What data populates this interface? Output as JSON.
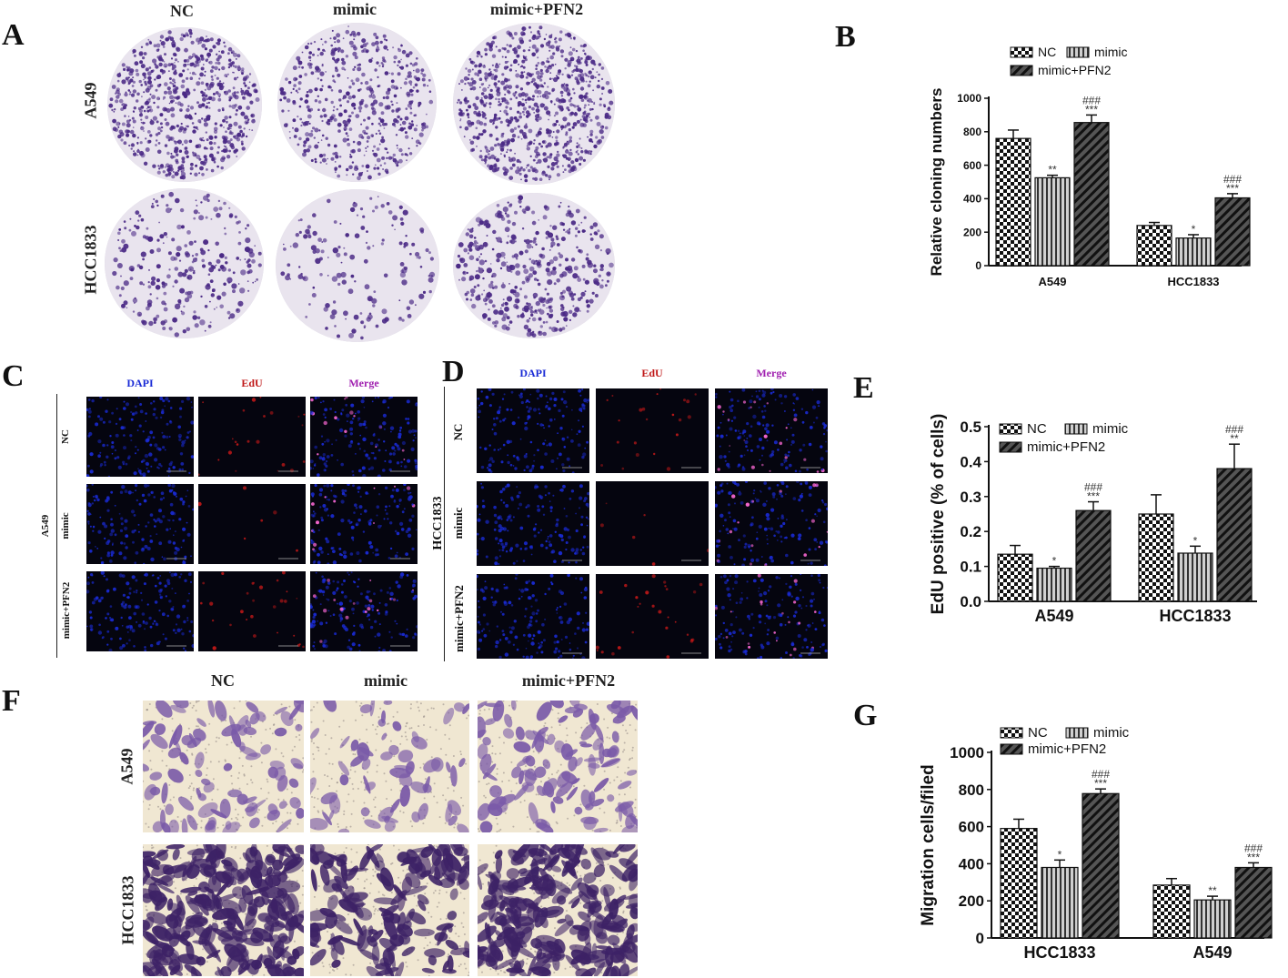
{
  "panels": {
    "A": {
      "label": "A",
      "columns": [
        "NC",
        "mimic",
        "mimic+PFN2"
      ],
      "rows": [
        "A549",
        "HCC1833"
      ]
    },
    "C": {
      "label": "C",
      "columns": [
        "DAPI",
        "EdU",
        "Merge"
      ],
      "rows": [
        "NC",
        "mimic",
        "mimic+PFN2"
      ],
      "cell_line": "A549"
    },
    "D": {
      "label": "D",
      "columns": [
        "DAPI",
        "EdU",
        "Merge"
      ],
      "rows": [
        "NC",
        "mimic",
        "mimic+PFN2"
      ],
      "cell_line": "HCC1833"
    },
    "F": {
      "label": "F",
      "columns": [
        "NC",
        "mimic",
        "mimic+PFN2"
      ],
      "rows": [
        "A549",
        "HCC1833"
      ]
    },
    "colors": {
      "dapi": "#1a2bd6",
      "edu": "#c01818",
      "stain": "#4b2a86",
      "dish_bg": "#e9e4ee",
      "trans_bg": "#f0e7d2"
    }
  },
  "chart_data": [
    {
      "panel": "B",
      "type": "bar",
      "categories": [
        "A549",
        "HCC1833"
      ],
      "ylabel": "Relative cloning numbers",
      "ylim": [
        0,
        1000
      ],
      "yticks": [
        0,
        200,
        400,
        600,
        800,
        1000
      ],
      "legend": [
        "NC",
        "mimic",
        "mimic+PFN2"
      ],
      "series": [
        {
          "name": "NC",
          "values": [
            760,
            240
          ],
          "errors": [
            50,
            18
          ],
          "annotations": [
            "",
            ""
          ]
        },
        {
          "name": "mimic",
          "values": [
            525,
            165
          ],
          "errors": [
            15,
            20
          ],
          "annotations": [
            "**",
            "*"
          ]
        },
        {
          "name": "mimic+PFN2",
          "values": [
            855,
            405
          ],
          "errors": [
            45,
            25
          ],
          "annotations": [
            "###\n***",
            "###\n***"
          ]
        }
      ]
    },
    {
      "panel": "E",
      "type": "bar",
      "categories": [
        "A549",
        "HCC1833"
      ],
      "ylabel": "EdU positive (% of cells)",
      "ylim": [
        0,
        0.5
      ],
      "yticks": [
        "0.0",
        "0.1",
        "0.2",
        "0.3",
        "0.4",
        "0.5"
      ],
      "legend": [
        "NC",
        "mimic",
        "mimic+PFN2"
      ],
      "series": [
        {
          "name": "NC",
          "values": [
            0.135,
            0.25
          ],
          "errors": [
            0.025,
            0.055
          ],
          "annotations": [
            "",
            ""
          ]
        },
        {
          "name": "mimic",
          "values": [
            0.095,
            0.138
          ],
          "errors": [
            0.005,
            0.02
          ],
          "annotations": [
            "*",
            "*"
          ]
        },
        {
          "name": "mimic+PFN2",
          "values": [
            0.26,
            0.38
          ],
          "errors": [
            0.025,
            0.07
          ],
          "annotations": [
            "###\n***",
            "###\n**"
          ]
        }
      ]
    },
    {
      "panel": "G",
      "type": "bar",
      "categories": [
        "HCC1833",
        "A549"
      ],
      "ylabel": "Migration cells/filed",
      "ylim": [
        0,
        1000
      ],
      "yticks": [
        0,
        200,
        400,
        600,
        800,
        1000
      ],
      "legend": [
        "NC",
        "mimic",
        "mimic+PFN2"
      ],
      "series": [
        {
          "name": "NC",
          "values": [
            590,
            285
          ],
          "errors": [
            50,
            35
          ],
          "annotations": [
            "",
            ""
          ]
        },
        {
          "name": "mimic",
          "values": [
            380,
            205
          ],
          "errors": [
            40,
            20
          ],
          "annotations": [
            "*",
            "**"
          ]
        },
        {
          "name": "mimic+PFN2",
          "values": [
            778,
            380
          ],
          "errors": [
            25,
            25
          ],
          "annotations": [
            "###\n***",
            "###\n***"
          ]
        }
      ]
    }
  ]
}
